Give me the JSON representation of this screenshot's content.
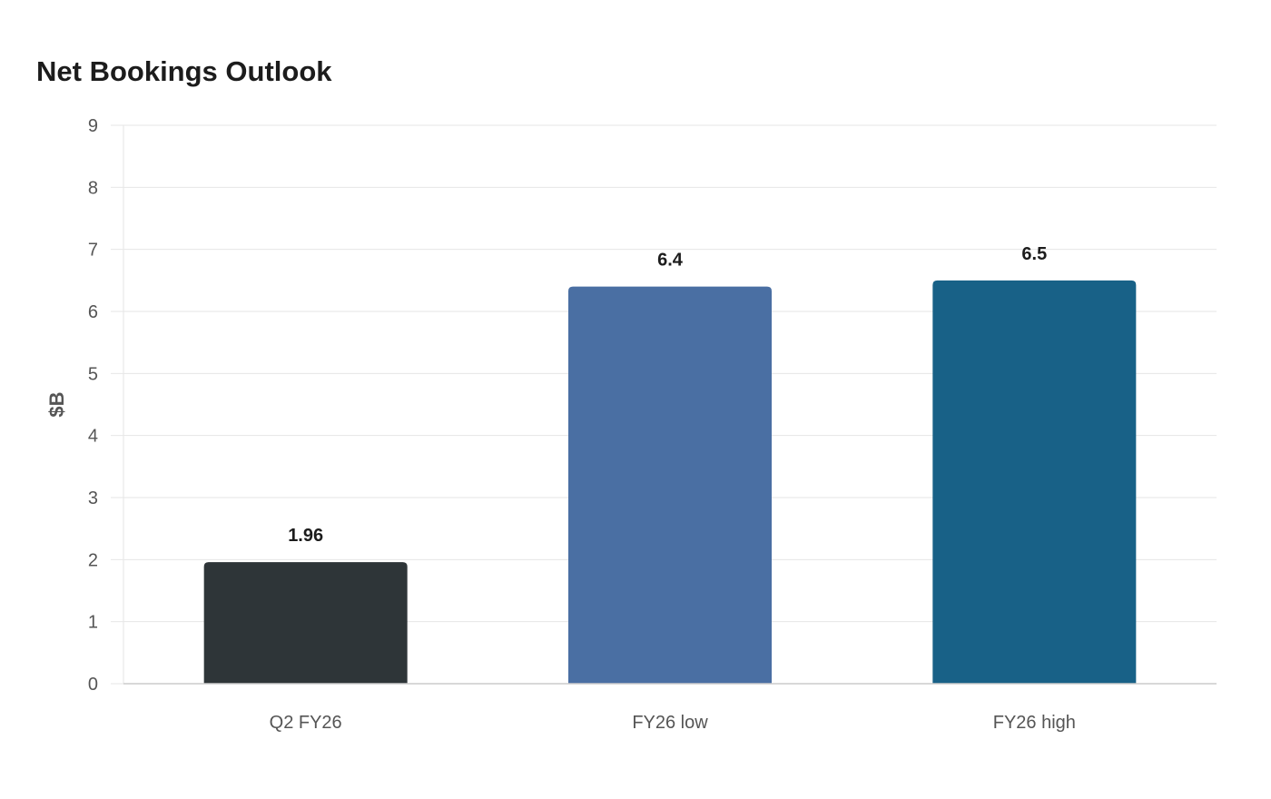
{
  "chart_data": {
    "type": "bar",
    "title": "Net Bookings Outlook",
    "xlabel": "",
    "ylabel": "$B",
    "ylim": [
      0,
      9
    ],
    "yticks": [
      "0",
      "1",
      "2",
      "3",
      "4",
      "5",
      "6",
      "7",
      "8",
      "9"
    ],
    "categories": [
      "Q2 FY26",
      "FY26 low",
      "FY26 high"
    ],
    "values": [
      1.96,
      6.4,
      6.5
    ],
    "data_labels": [
      "1.96",
      "6.4",
      "6.5"
    ],
    "colors": [
      "#2e3538",
      "#4a6fa3",
      "#186187"
    ],
    "grid": true,
    "legend": "none"
  }
}
